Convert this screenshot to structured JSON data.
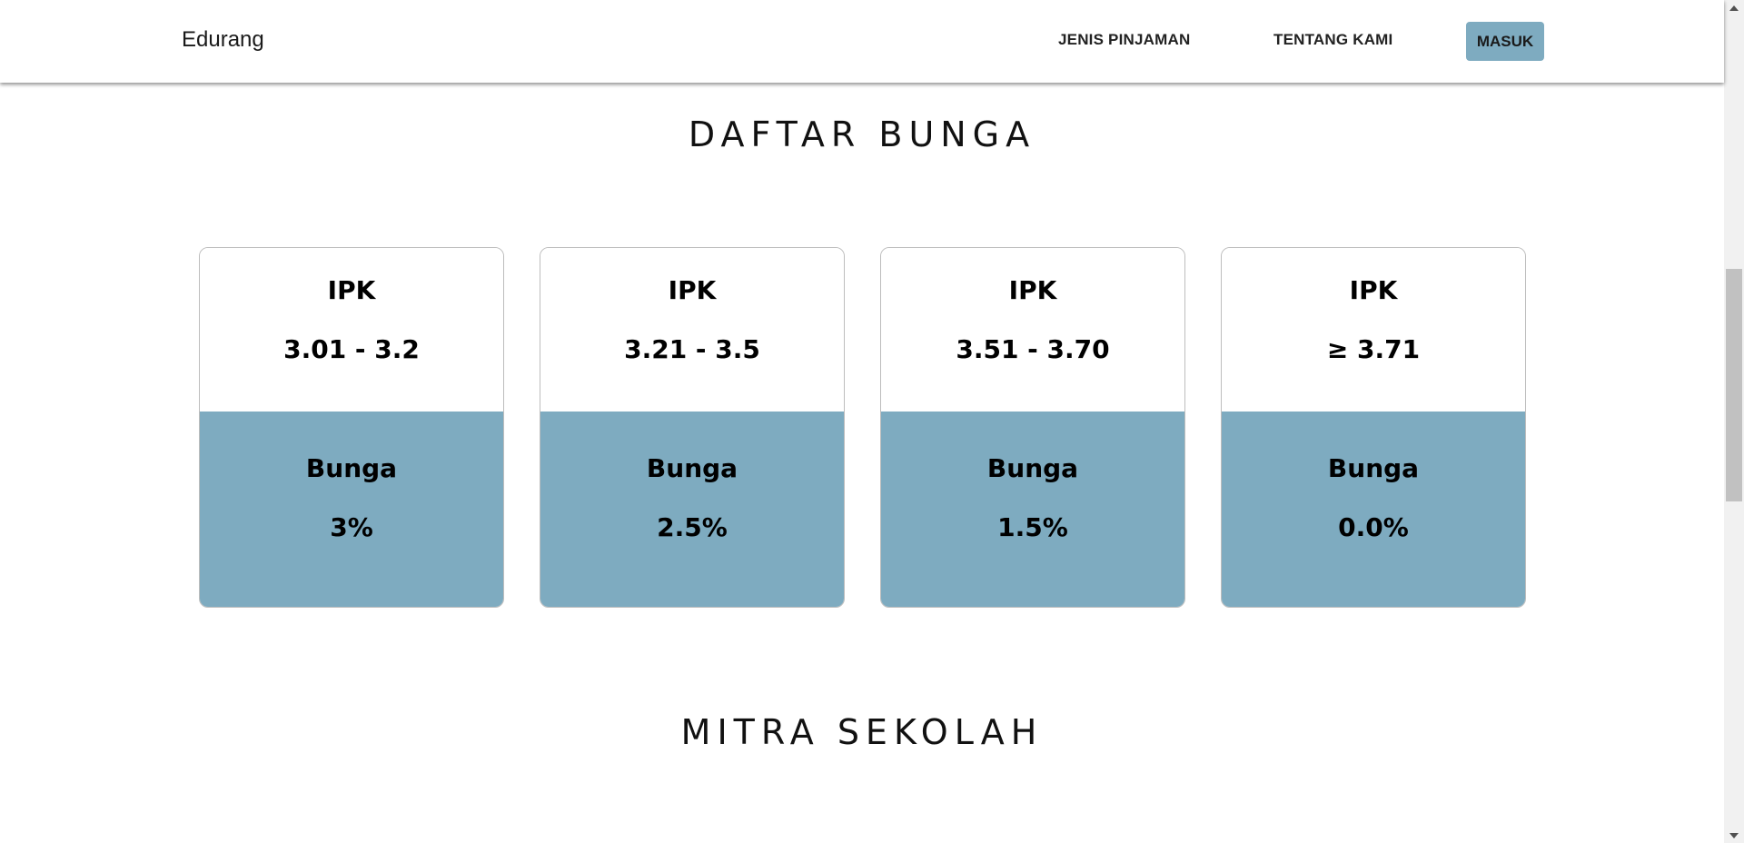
{
  "header": {
    "brand": "Edurang",
    "nav": {
      "jenis_pinjaman": "JENIS PINJAMAN",
      "tentang_kami": "TENTANG KAMI",
      "masuk": "MASUK"
    }
  },
  "interest_section": {
    "title": "DAFTAR BUNGA",
    "cards": [
      {
        "ipk_label": "IPK",
        "ipk_range": "3.01 - 3.2",
        "bunga_label": "Bunga",
        "bunga_value": "3%"
      },
      {
        "ipk_label": "IPK",
        "ipk_range": "3.21 - 3.5",
        "bunga_label": "Bunga",
        "bunga_value": "2.5%"
      },
      {
        "ipk_label": "IPK",
        "ipk_range": "3.51 - 3.70",
        "bunga_label": "Bunga",
        "bunga_value": "1.5%"
      },
      {
        "ipk_label": "IPK",
        "ipk_range": "≥ 3.71",
        "bunga_label": "Bunga",
        "bunga_value": "0.0%"
      }
    ]
  },
  "partners_section": {
    "title": "MITRA SEKOLAH"
  },
  "colors": {
    "accent": "#7eabc0",
    "card_border": "#bdbdbd",
    "text": "#000000"
  }
}
